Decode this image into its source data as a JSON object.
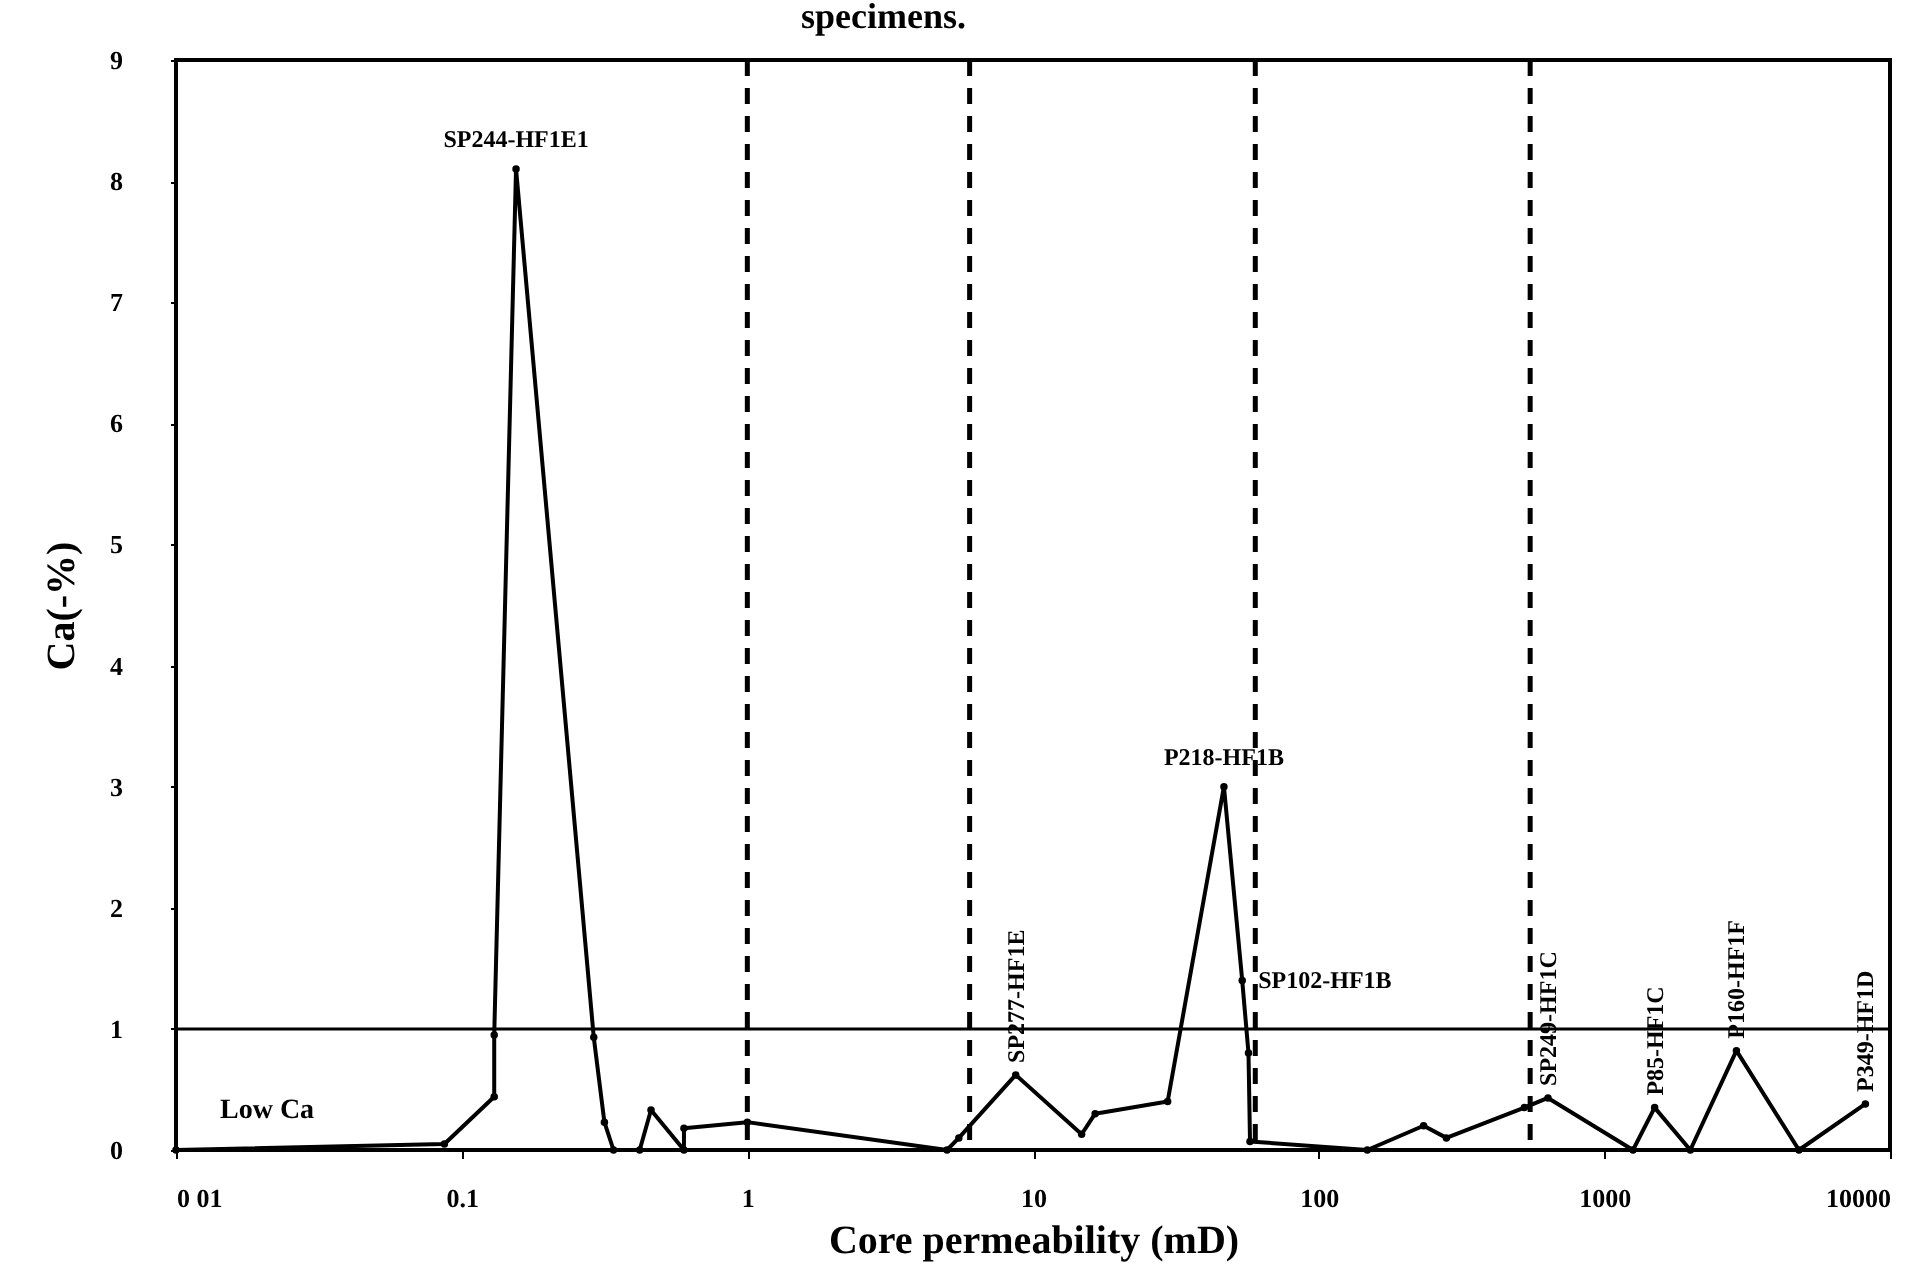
{
  "chart_data": {
    "type": "line",
    "title": "specimens.",
    "xlabel": "Core permeability (mD)",
    "ylabel": "Ca(-%)",
    "log": "x",
    "marker": "circle",
    "line_style": "solid",
    "xlim": [
      0.01,
      10000
    ],
    "xticks": [
      {
        "value": 0.01,
        "label": "0 01"
      },
      0.1,
      1,
      10,
      100,
      1000,
      10000
    ],
    "ylim": [
      0,
      9
    ],
    "yticks": [
      0,
      1,
      2,
      3,
      4,
      5,
      6,
      7,
      8,
      9
    ],
    "x": [
      0.01,
      0.087,
      0.13,
      0.13,
      0.155,
      0.29,
      0.316,
      0.34,
      0.42,
      0.46,
      0.6,
      0.6,
      1.0,
      5.0,
      5.5,
      8.7,
      14.8,
      16.5,
      29.6,
      46.6,
      54,
      56.8,
      57.5,
      148,
      233,
      280,
      525,
      635,
      1260,
      1500,
      2000,
      2900,
      4800,
      8200
    ],
    "series": [
      {
        "color": "#000000",
        "values": [
          0,
          0.05,
          0.44,
          0.95,
          8.1,
          0.93,
          0.23,
          0,
          0,
          0.33,
          0,
          0.18,
          0.23,
          0,
          0.1,
          0.62,
          0.13,
          0.3,
          0.4,
          3.0,
          1.4,
          0.8,
          0.07,
          0,
          0.2,
          0.1,
          0.35,
          0.43,
          0,
          0.35,
          0,
          0.82,
          0,
          0.38
        ]
      }
    ],
    "ref_lines": [
      {
        "axis": "y",
        "value": 1,
        "line_style": "solid",
        "color": "#000000"
      },
      {
        "axis": "x",
        "value": 1,
        "line_style": "dashed",
        "color": "#000000"
      },
      {
        "axis": "x",
        "value": 6,
        "line_style": "dashed",
        "color": "#000000"
      },
      {
        "axis": "x",
        "value": 60,
        "line_style": "dashed",
        "color": "#000000"
      },
      {
        "axis": "x",
        "value": 550,
        "line_style": "dashed",
        "color": "#000000"
      }
    ],
    "annotations": [
      {
        "text": "SP244-HF1E1",
        "x": 0.155,
        "y": 8.1
      },
      {
        "text": "P218-HF1B",
        "x": 46.6,
        "y": 3.0
      },
      {
        "text": "SP277-HF1E",
        "x": 8.7,
        "y": 0.62
      },
      {
        "text": "SP102-HF1B",
        "x": 54,
        "y": 1.4
      },
      {
        "text": "SP249-HF1C",
        "x": 635,
        "y": 0.43
      },
      {
        "text": "P85-HF1C",
        "x": 1500,
        "y": 0.35
      },
      {
        "text": "P160-HF1F",
        "x": 2900,
        "y": 0.82
      },
      {
        "text": "P349-HF1D",
        "x": 8200,
        "y": 0.38
      },
      "Low Ca"
    ]
  }
}
